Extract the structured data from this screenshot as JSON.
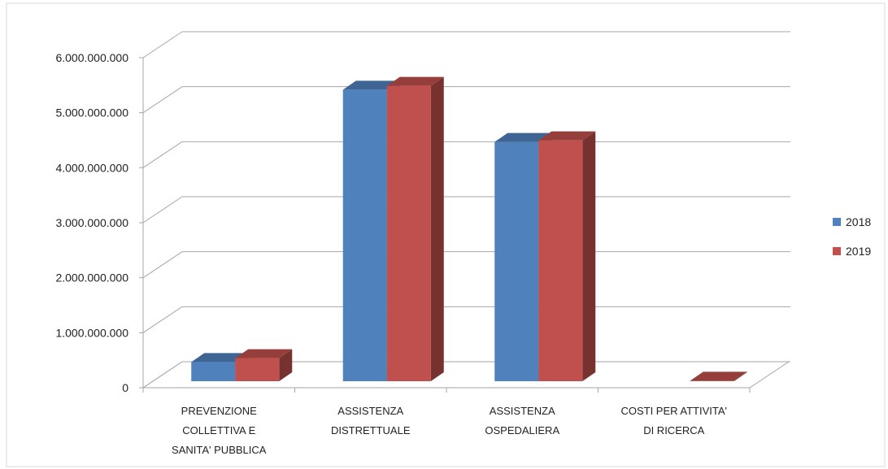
{
  "chart_data": {
    "type": "bar",
    "style": "3d-clustered-column",
    "categories": [
      [
        "PREVENZIONE",
        "COLLETTIVA E",
        "SANITA' PUBBLICA"
      ],
      [
        "ASSISTENZA",
        "DISTRETTUALE"
      ],
      [
        "ASSISTENZA",
        "OSPEDALIERA"
      ],
      [
        "COSTI PER ATTIVITA'",
        "DI RICERCA"
      ]
    ],
    "series": [
      {
        "name": "2018",
        "color": "#4F81BD",
        "values": [
          350000000,
          5300000000,
          4350000000,
          0
        ]
      },
      {
        "name": "2019",
        "color": "#C0504D",
        "values": [
          420000000,
          5370000000,
          4380000000,
          10000000
        ]
      }
    ],
    "yticks": [
      "0",
      "1.000.000.000",
      "2.000.000.000",
      "3.000.000.000",
      "4.000.000.000",
      "5.000.000.000",
      "6.000.000.000"
    ],
    "ylim": [
      0,
      6000000000
    ],
    "grid": true,
    "legend": "right"
  }
}
